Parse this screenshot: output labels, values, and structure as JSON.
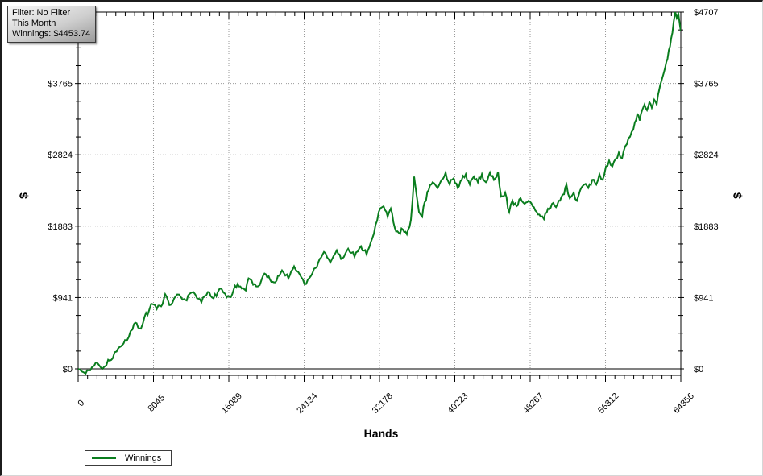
{
  "tooltip": {
    "lines": [
      "Filter: No Filter",
      "This Month",
      "Winnings: $4453.74"
    ]
  },
  "chart_data": {
    "type": "line",
    "title": "",
    "xlabel": "Hands",
    "ylabel_left": "$",
    "ylabel_right": "$",
    "xlim": [
      0,
      64356
    ],
    "ylim": [
      -85,
      4707
    ],
    "grid": "dotted-major",
    "legend_position": "bottom-left",
    "x_ticks": [
      {
        "value": 0,
        "label": "0"
      },
      {
        "value": 8045,
        "label": "8045"
      },
      {
        "value": 16089,
        "label": "16089"
      },
      {
        "value": 24134,
        "label": "24134"
      },
      {
        "value": 32178,
        "label": "32178"
      },
      {
        "value": 40223,
        "label": "40223"
      },
      {
        "value": 48267,
        "label": "48267"
      },
      {
        "value": 56312,
        "label": "56312"
      },
      {
        "value": 64356,
        "label": "64356"
      }
    ],
    "y_ticks": [
      {
        "value": 0,
        "label": "$0"
      },
      {
        "value": 941,
        "label": "$941"
      },
      {
        "value": 1883,
        "label": "$1883"
      },
      {
        "value": 2824,
        "label": "$2824"
      },
      {
        "value": 3765,
        "label": "$3765"
      },
      {
        "value": 4707,
        "label": "$4707"
      }
    ],
    "x_minor_divisions": 8,
    "y_minor_divisions": 4,
    "colors": {
      "line": "#0a7d1e",
      "grid": "#9a9a9a",
      "axis": "#000000",
      "zero_line": "#000000",
      "label": "#000000"
    },
    "series": [
      {
        "name": "Winnings",
        "color": "#0a7d1e",
        "final_value": 4453.74,
        "points": [
          [
            0,
            0
          ],
          [
            400,
            -35
          ],
          [
            800,
            -62
          ],
          [
            1300,
            -20
          ],
          [
            1700,
            40
          ],
          [
            2000,
            85
          ],
          [
            2400,
            20
          ],
          [
            2800,
            30
          ],
          [
            3200,
            120
          ],
          [
            3700,
            140
          ],
          [
            4100,
            230
          ],
          [
            4550,
            295
          ],
          [
            5000,
            380
          ],
          [
            5400,
            420
          ],
          [
            5800,
            520
          ],
          [
            6100,
            610
          ],
          [
            6400,
            545
          ],
          [
            6700,
            530
          ],
          [
            7100,
            690
          ],
          [
            7570,
            770
          ],
          [
            7800,
            860
          ],
          [
            8050,
            850
          ],
          [
            8400,
            790
          ],
          [
            8860,
            825
          ],
          [
            9290,
            985
          ],
          [
            9600,
            900
          ],
          [
            9890,
            845
          ],
          [
            10250,
            930
          ],
          [
            10580,
            983
          ],
          [
            11000,
            940
          ],
          [
            11440,
            910
          ],
          [
            11900,
            990
          ],
          [
            12300,
            1015
          ],
          [
            12700,
            930
          ],
          [
            13160,
            877
          ],
          [
            13500,
            960
          ],
          [
            13850,
            1015
          ],
          [
            14150,
            960
          ],
          [
            14460,
            930
          ],
          [
            14900,
            1010
          ],
          [
            15310,
            1057
          ],
          [
            15700,
            990
          ],
          [
            16170,
            950
          ],
          [
            16600,
            1040
          ],
          [
            17030,
            1120
          ],
          [
            17460,
            1060
          ],
          [
            17900,
            1035
          ],
          [
            18200,
            1194
          ],
          [
            18850,
            1120
          ],
          [
            19190,
            1088
          ],
          [
            19600,
            1180
          ],
          [
            20050,
            1247
          ],
          [
            20480,
            1180
          ],
          [
            20910,
            1141
          ],
          [
            21340,
            1230
          ],
          [
            21770,
            1300
          ],
          [
            22120,
            1230
          ],
          [
            22460,
            1194
          ],
          [
            22760,
            1290
          ],
          [
            23060,
            1353
          ],
          [
            23360,
            1290
          ],
          [
            23660,
            1247
          ],
          [
            24000,
            1180
          ],
          [
            24350,
            1120
          ],
          [
            24700,
            1200
          ],
          [
            25040,
            1268
          ],
          [
            25340,
            1330
          ],
          [
            25640,
            1405
          ],
          [
            25950,
            1470
          ],
          [
            26250,
            1543
          ],
          [
            26590,
            1470
          ],
          [
            26930,
            1405
          ],
          [
            27280,
            1490
          ],
          [
            27620,
            1564
          ],
          [
            27920,
            1510
          ],
          [
            28220,
            1458
          ],
          [
            28530,
            1520
          ],
          [
            28830,
            1585
          ],
          [
            29170,
            1530
          ],
          [
            29510,
            1480
          ],
          [
            29860,
            1550
          ],
          [
            30200,
            1617
          ],
          [
            30500,
            1560
          ],
          [
            30800,
            1511
          ],
          [
            31100,
            1610
          ],
          [
            31410,
            1723
          ],
          [
            31760,
            1900
          ],
          [
            32100,
            2071
          ],
          [
            32620,
            2145
          ],
          [
            33050,
            2008
          ],
          [
            33380,
            2114
          ],
          [
            33810,
            1860
          ],
          [
            34240,
            1796
          ],
          [
            34670,
            1839
          ],
          [
            35100,
            1775
          ],
          [
            35530,
            1966
          ],
          [
            35880,
            2536
          ],
          [
            36130,
            2304
          ],
          [
            36390,
            2071
          ],
          [
            36740,
            2008
          ],
          [
            37000,
            2198
          ],
          [
            37430,
            2357
          ],
          [
            37860,
            2462
          ],
          [
            38380,
            2388
          ],
          [
            38810,
            2494
          ],
          [
            39240,
            2589
          ],
          [
            39670,
            2431
          ],
          [
            40100,
            2515
          ],
          [
            40530,
            2388
          ],
          [
            40960,
            2494
          ],
          [
            41390,
            2568
          ],
          [
            41820,
            2431
          ],
          [
            42250,
            2536
          ],
          [
            42680,
            2462
          ],
          [
            43110,
            2568
          ],
          [
            43540,
            2462
          ],
          [
            43970,
            2589
          ],
          [
            44400,
            2494
          ],
          [
            44830,
            2600
          ],
          [
            45170,
            2272
          ],
          [
            45600,
            2325
          ],
          [
            46030,
            2071
          ],
          [
            46380,
            2219
          ],
          [
            46810,
            2145
          ],
          [
            47240,
            2251
          ],
          [
            47670,
            2177
          ],
          [
            48100,
            2219
          ],
          [
            48530,
            2145
          ],
          [
            48960,
            2071
          ],
          [
            49390,
            2008
          ],
          [
            49740,
            1976
          ],
          [
            50170,
            2114
          ],
          [
            50600,
            2177
          ],
          [
            51030,
            2134
          ],
          [
            51460,
            2219
          ],
          [
            51890,
            2304
          ],
          [
            52150,
            2431
          ],
          [
            52490,
            2251
          ],
          [
            52920,
            2325
          ],
          [
            53260,
            2219
          ],
          [
            53610,
            2357
          ],
          [
            54040,
            2431
          ],
          [
            54470,
            2388
          ],
          [
            54900,
            2494
          ],
          [
            55330,
            2431
          ],
          [
            55670,
            2568
          ],
          [
            56010,
            2494
          ],
          [
            56360,
            2673
          ],
          [
            56700,
            2747
          ],
          [
            57050,
            2673
          ],
          [
            57390,
            2768
          ],
          [
            57730,
            2853
          ],
          [
            58080,
            2779
          ],
          [
            58420,
            2937
          ],
          [
            58760,
            3043
          ],
          [
            59110,
            3128
          ],
          [
            59450,
            3254
          ],
          [
            59710,
            3360
          ],
          [
            59970,
            3276
          ],
          [
            60230,
            3413
          ],
          [
            60480,
            3487
          ],
          [
            60740,
            3413
          ],
          [
            61000,
            3519
          ],
          [
            61260,
            3445
          ],
          [
            61520,
            3551
          ],
          [
            61780,
            3487
          ],
          [
            62040,
            3677
          ],
          [
            62300,
            3804
          ],
          [
            62550,
            3910
          ],
          [
            62810,
            4047
          ],
          [
            63070,
            4206
          ],
          [
            63330,
            4364
          ],
          [
            63590,
            4576
          ],
          [
            63760,
            4707
          ],
          [
            63930,
            4628
          ],
          [
            64100,
            4681
          ],
          [
            64270,
            4523
          ],
          [
            64356,
            4453.74
          ]
        ]
      }
    ]
  }
}
